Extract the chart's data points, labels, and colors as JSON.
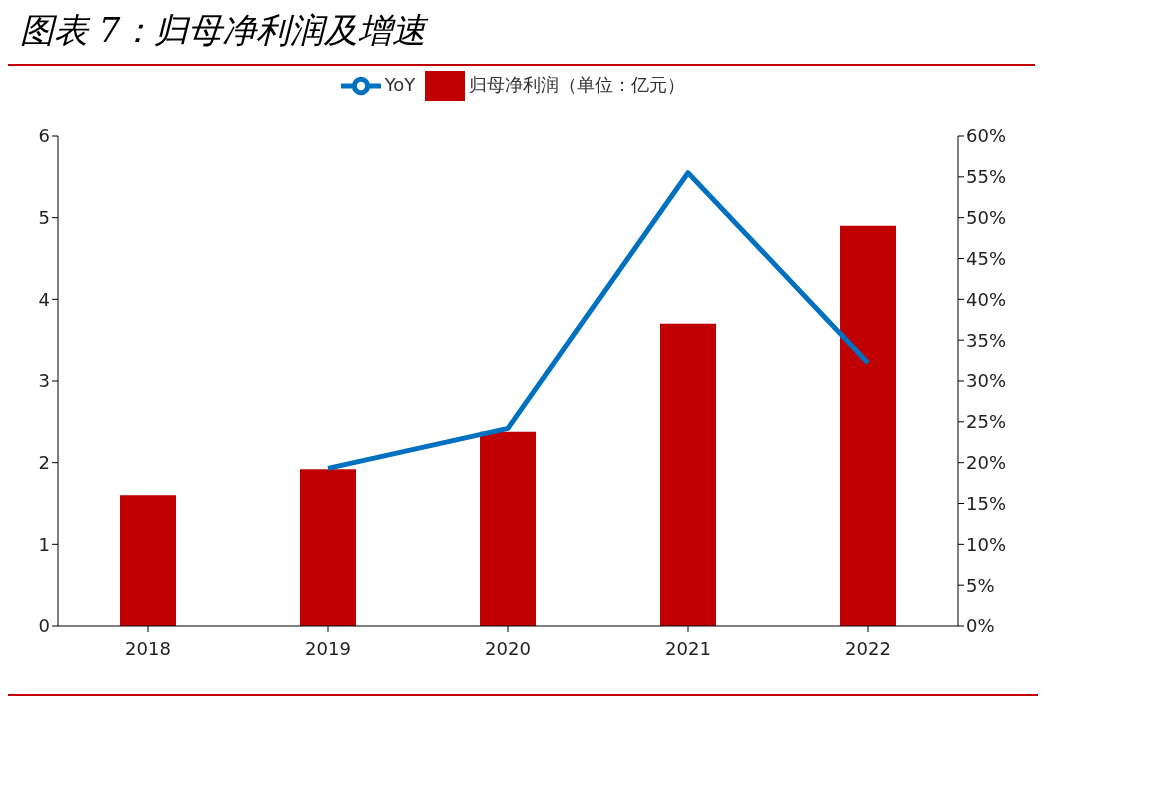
{
  "chart_data": {
    "type": "bar",
    "title": "图表 7：归母净利润及增速",
    "categories": [
      "2018",
      "2019",
      "2020",
      "2021",
      "2022"
    ],
    "series": [
      {
        "name": "归母净利润（单位：亿元）",
        "color": "#c00000",
        "values": [
          1.6,
          1.92,
          2.38,
          3.7,
          4.9
        ]
      },
      {
        "name": "YoY",
        "type": "line",
        "axis": "y2",
        "color": "#0070c0",
        "values": [
          null,
          19.3,
          24.2,
          55.5,
          32.2
        ]
      }
    ],
    "ylim": [
      0,
      6
    ],
    "yticks": [
      0,
      1,
      2,
      3,
      4,
      5,
      6
    ],
    "y2lim": [
      0,
      60
    ],
    "y2ticks": [
      {
        "value": 0,
        "label": "0%"
      },
      {
        "value": 5,
        "label": "5%"
      },
      {
        "value": 10,
        "label": "10%"
      },
      {
        "value": 15,
        "label": "15%"
      },
      {
        "value": 20,
        "label": "20%"
      },
      {
        "value": 25,
        "label": "25%"
      },
      {
        "value": 30,
        "label": "30%"
      },
      {
        "value": 35,
        "label": "35%"
      },
      {
        "value": 40,
        "label": "40%"
      },
      {
        "value": 45,
        "label": "45%"
      },
      {
        "value": 50,
        "label": "50%"
      },
      {
        "value": 55,
        "label": "55%"
      },
      {
        "value": 60,
        "label": "60%"
      }
    ],
    "legend": "top",
    "grid": false,
    "marker": "none",
    "line_style": "solid"
  }
}
